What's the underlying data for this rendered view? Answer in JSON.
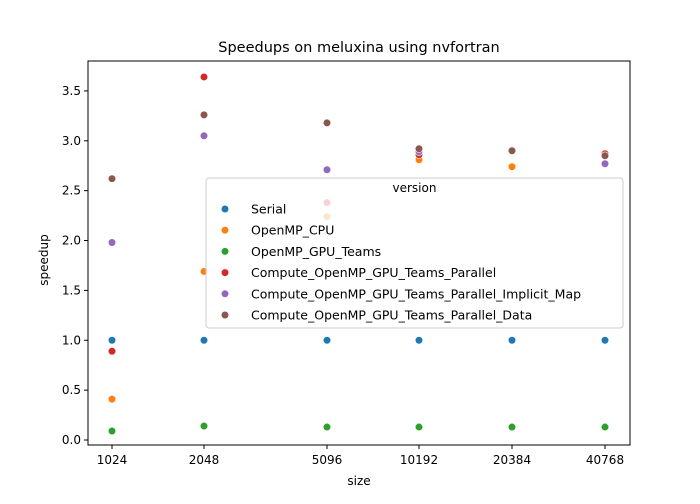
{
  "chart_data": {
    "type": "scatter",
    "title": "Speedups on meluxina using nvfortran",
    "xlabel": "size",
    "ylabel": "speedup",
    "categories": [
      "1024",
      "2048",
      "5096",
      "10192",
      "20384",
      "40768"
    ],
    "ylim": [
      -0.05,
      3.8
    ],
    "yticks": [
      "0.0",
      "0.5",
      "1.0",
      "1.5",
      "2.0",
      "2.5",
      "3.0",
      "3.5"
    ],
    "grid": false,
    "legend": {
      "title": "version",
      "placement": "center-right"
    },
    "series": [
      {
        "name": "Serial",
        "color": "#1f77b4",
        "values": [
          1.0,
          1.0,
          1.0,
          1.0,
          1.0,
          1.0
        ]
      },
      {
        "name": "OpenMP_CPU",
        "color": "#ff7f0e",
        "values": [
          0.41,
          1.69,
          2.24,
          2.81,
          2.74,
          2.86
        ]
      },
      {
        "name": "OpenMP_GPU_Teams",
        "color": "#2ca02c",
        "values": [
          0.09,
          0.14,
          0.13,
          0.13,
          0.13,
          0.13
        ]
      },
      {
        "name": "Compute_OpenMP_GPU_Teams_Parallel",
        "color": "#d62728",
        "values": [
          0.89,
          3.64,
          2.38,
          2.86,
          2.9,
          2.87
        ]
      },
      {
        "name": "Compute_OpenMP_GPU_Teams_Parallel_Implicit_Map",
        "color": "#9467bd",
        "values": [
          1.98,
          3.05,
          2.71,
          2.89,
          2.9,
          2.77
        ]
      },
      {
        "name": "Compute_OpenMP_GPU_Teams_Parallel_Data",
        "color": "#8c564b",
        "values": [
          2.62,
          3.26,
          3.18,
          2.92,
          2.9,
          2.85
        ]
      }
    ]
  }
}
